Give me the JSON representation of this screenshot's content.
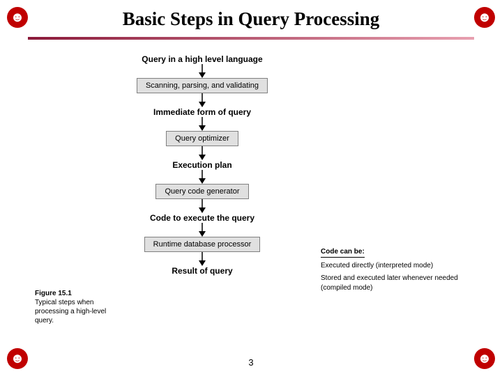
{
  "title": "Basic Steps in Query Processing",
  "page_number": "3",
  "underline": {
    "from": "#8b1a3a",
    "to": "#e8a0b0"
  },
  "flowchart": {
    "type": "flowchart",
    "box_bg": "#e0e0e0",
    "box_border": "#808080",
    "arrow_color": "#000000",
    "items": [
      {
        "text": "Query in a high level language",
        "kind": "label"
      },
      {
        "text": "Scanning, parsing, and validating",
        "kind": "box"
      },
      {
        "text": "Immediate form of query",
        "kind": "label"
      },
      {
        "text": "Query optimizer",
        "kind": "box"
      },
      {
        "text": "Execution plan",
        "kind": "label"
      },
      {
        "text": "Query code generator",
        "kind": "box"
      },
      {
        "text": "Code to execute the query",
        "kind": "label"
      },
      {
        "text": "Runtime database processor",
        "kind": "box"
      },
      {
        "text": "Result of query",
        "kind": "label"
      }
    ]
  },
  "figure_caption": {
    "number": "Figure 15.1",
    "text": "Typical steps when processing a high-level query."
  },
  "side_note": {
    "heading": "Code can be:",
    "line1": "Executed directly (interpreted mode)",
    "line2": "Stored and executed later whenever needed (compiled mode)"
  },
  "corner_glyph": "☻",
  "corner_color": "#c00000"
}
